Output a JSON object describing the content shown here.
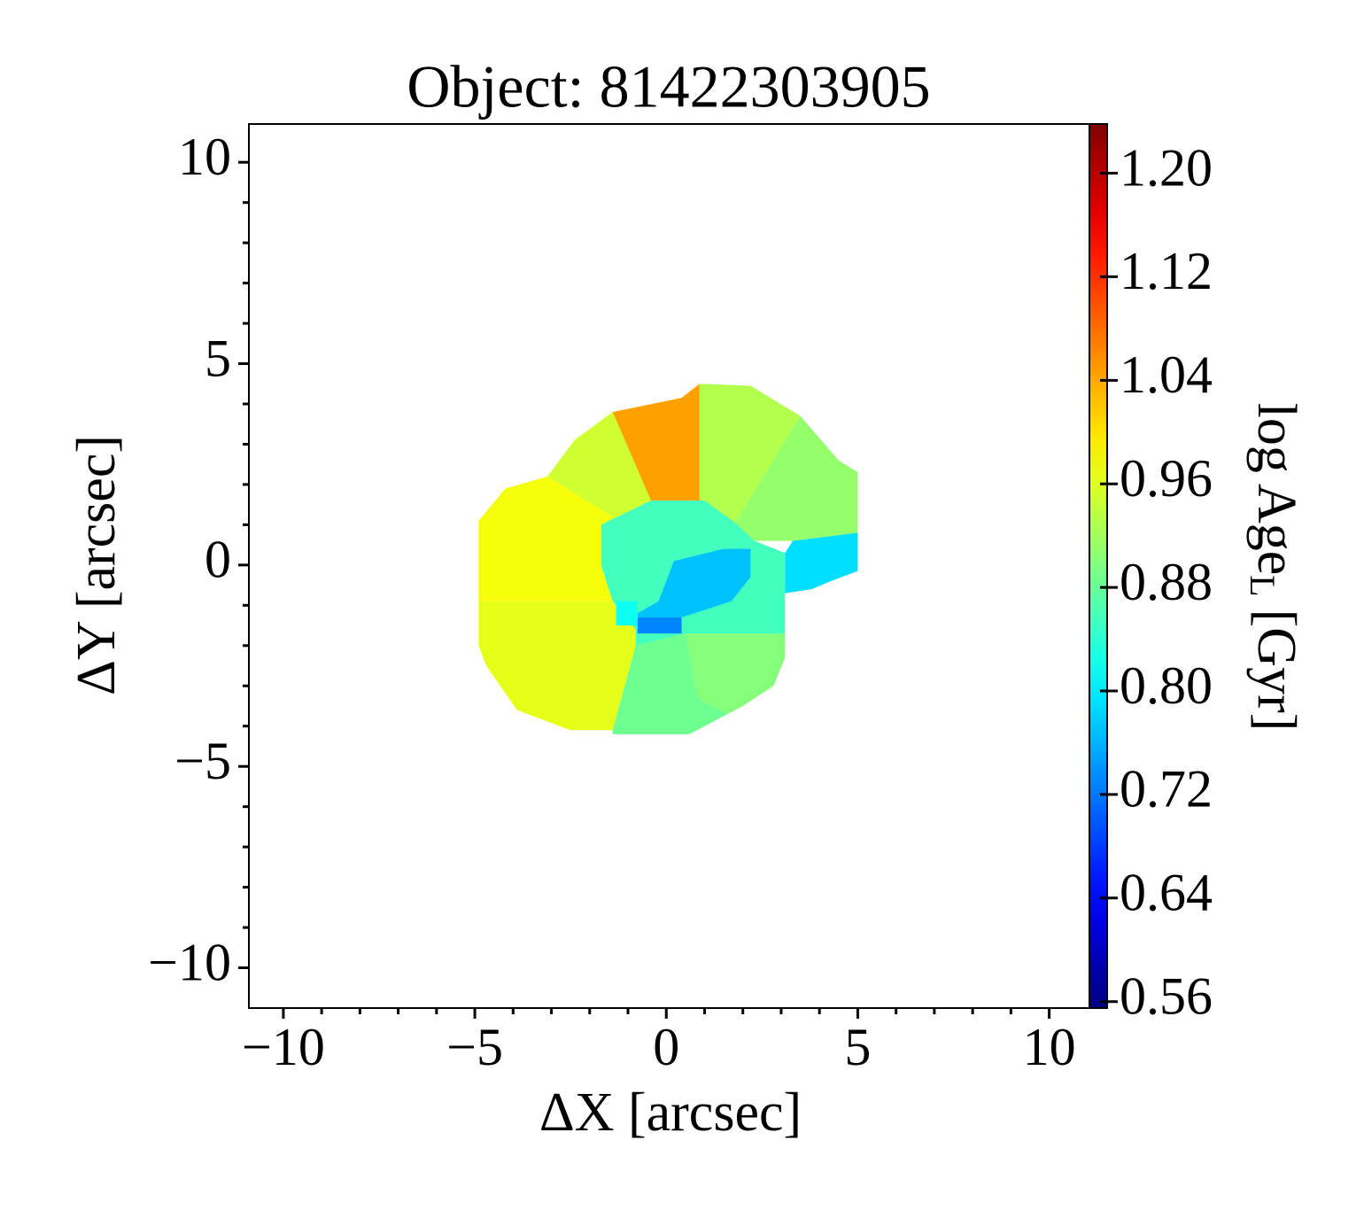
{
  "chart_data": {
    "type": "map",
    "title": "Object: 81422303905",
    "xlabel": "ΔX [arcsec]",
    "ylabel": "ΔY [arcsec]",
    "colorbar_label": "log Age",
    "colorbar_label_sub": "L",
    "colorbar_label_unit": "[Gyr]",
    "colormap": "jet",
    "xlim": [
      -10.9,
      11.05
    ],
    "ylim": [
      -11,
      10.95
    ],
    "clim": [
      0.555,
      1.238
    ],
    "xticks": [
      {
        "value": -10,
        "label": "−10"
      },
      {
        "value": -5,
        "label": "−5"
      },
      0,
      5,
      10
    ],
    "yticks": [
      {
        "value": -10,
        "label": "−10"
      },
      {
        "value": -5,
        "label": "−5"
      },
      0,
      5,
      10
    ],
    "xminorticks": [
      -9,
      -8,
      -7,
      -6,
      -4,
      -3,
      -2,
      -1,
      1,
      2,
      3,
      4,
      6,
      7,
      8,
      9
    ],
    "yminorticks": [
      -9,
      -8,
      -7,
      -6,
      -4,
      -3,
      -2,
      -1,
      1,
      2,
      3,
      4,
      6,
      7,
      8,
      9
    ],
    "cticks": [
      0.56,
      0.64,
      0.72,
      {
        "value": 0.8,
        "label": "0.80"
      },
      0.88,
      0.96,
      1.04,
      1.12,
      {
        "value": 1.2,
        "label": "1.20"
      }
    ],
    "regions": [
      {
        "value": 0.975,
        "x": [
          -3.1,
          -1.4,
          -1.7,
          -1.4,
          -4.9,
          -4.9,
          -4.2
        ],
        "y": [
          2.2,
          1.2,
          0.0,
          -0.9,
          -0.9,
          1.1,
          1.9
        ]
      },
      {
        "value": 0.965,
        "x": [
          -4.9,
          -1.4,
          -0.8,
          -0.8,
          -1.4,
          -2.5,
          -3.9,
          -4.7,
          -4.9
        ],
        "y": [
          -0.9,
          -0.9,
          -1.6,
          -2.0,
          -4.1,
          -4.1,
          -3.6,
          -2.5,
          -2.0
        ]
      },
      {
        "value": 0.95,
        "x": [
          -3.1,
          -2.4,
          -1.4,
          -0.4,
          -1.7,
          -1.4
        ],
        "y": [
          2.2,
          3.1,
          3.8,
          1.6,
          1.0,
          1.2
        ]
      },
      {
        "value": 1.045,
        "x": [
          -1.4,
          0.4,
          0.87,
          0.87,
          -0.4
        ],
        "y": [
          3.8,
          4.15,
          4.5,
          1.6,
          1.6
        ]
      },
      {
        "value": 0.93,
        "x": [
          0.87,
          2.2,
          3.5,
          1.8,
          1.0,
          0.87
        ],
        "y": [
          4.5,
          4.45,
          3.7,
          1.05,
          1.6,
          1.6
        ]
      },
      {
        "value": 0.91,
        "x": [
          3.5,
          4.5,
          5.0,
          5.0,
          3.3,
          2.3,
          1.8
        ],
        "y": [
          3.7,
          2.6,
          2.3,
          0.8,
          0.6,
          0.6,
          1.05
        ]
      },
      {
        "value": 0.79,
        "x": [
          3.3,
          5.0,
          5.0,
          4.3,
          3.8,
          3.1,
          3.1
        ],
        "y": [
          0.6,
          0.8,
          -0.15,
          -0.4,
          -0.6,
          -0.7,
          0.3
        ]
      },
      {
        "value": 0.9,
        "x": [
          0.5,
          3.1,
          3.1,
          2.8,
          2.0,
          1.6,
          0.8
        ],
        "y": [
          -1.7,
          -1.7,
          -2.3,
          -3.0,
          -3.5,
          -3.7,
          -3.3
        ]
      },
      {
        "value": 0.885,
        "x": [
          -0.8,
          0.5,
          0.8,
          1.6,
          0.6,
          -1.4,
          -1.4
        ],
        "y": [
          -2.0,
          -1.7,
          -3.3,
          -3.7,
          -4.2,
          -4.2,
          -4.1
        ]
      },
      {
        "value": 0.855,
        "x": [
          -1.7,
          -0.4,
          1.0,
          1.8,
          2.3,
          3.1,
          3.1,
          0.5,
          -0.8,
          -0.8,
          -1.4,
          -1.7
        ],
        "y": [
          1.0,
          1.6,
          1.6,
          1.05,
          0.6,
          0.3,
          -1.7,
          -1.7,
          -2.0,
          -1.6,
          -0.9,
          0.0
        ]
      },
      {
        "value": 0.77,
        "x": [
          0.2,
          1.5,
          2.2,
          2.2,
          1.7,
          0.4,
          0.4,
          -0.75,
          -0.75,
          -0.2
        ],
        "y": [
          0.1,
          0.4,
          0.4,
          -0.3,
          -0.9,
          -1.3,
          -1.7,
          -1.7,
          -1.2,
          -0.9
        ]
      },
      {
        "value": 0.73,
        "x": [
          -0.75,
          0.4,
          0.4,
          -0.75
        ],
        "y": [
          -1.3,
          -1.3,
          -1.7,
          -1.7
        ]
      },
      {
        "value": 0.82,
        "x": [
          -1.3,
          -0.75,
          -0.75,
          -1.3
        ],
        "y": [
          -0.9,
          -0.9,
          -1.5,
          -1.5
        ]
      }
    ]
  }
}
